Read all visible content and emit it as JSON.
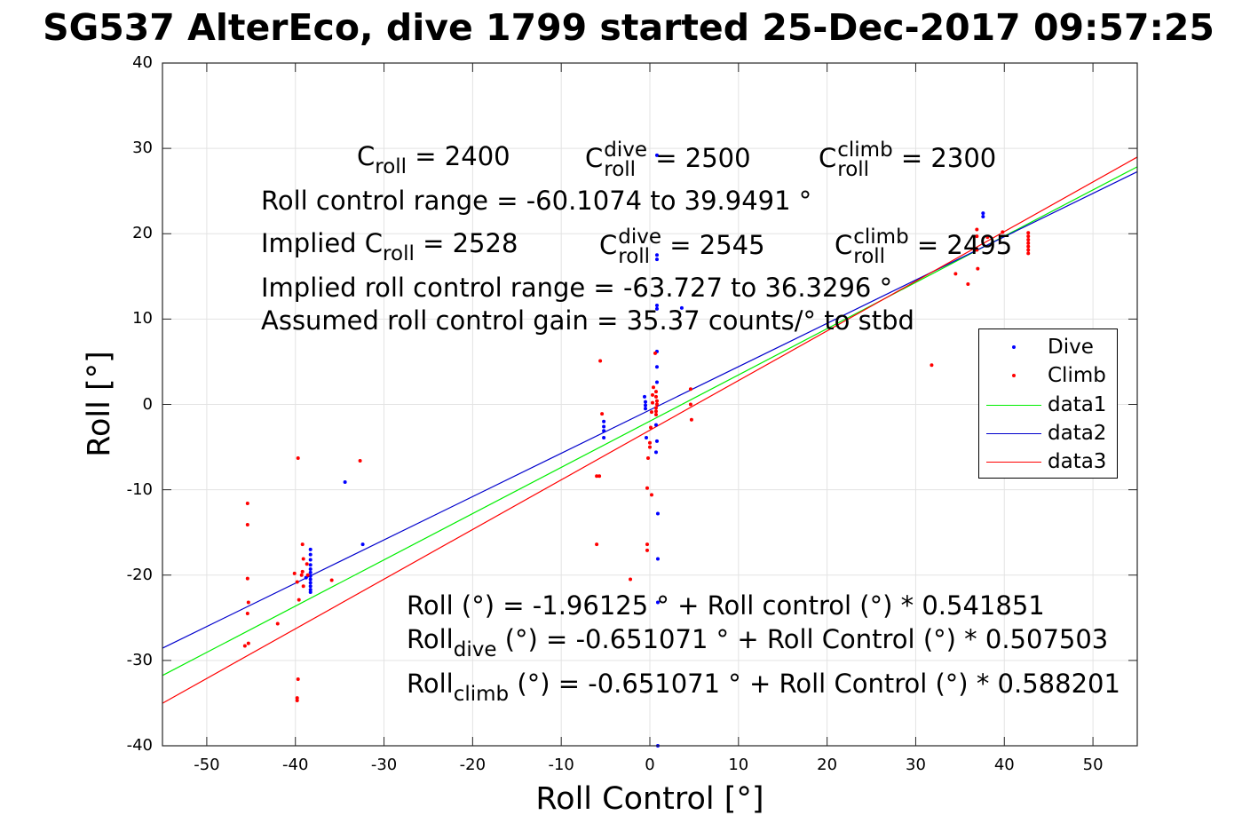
{
  "title": "SG537 AlterEco, dive 1799 started 25-Dec-2017 09:57:25",
  "annotations": {
    "c_roll": {
      "base": "C",
      "sub": "roll",
      "rest": " = 2400"
    },
    "c_roll_dive": {
      "base": "C",
      "sup": "dive",
      "sub": "roll",
      "rest": " = 2500"
    },
    "c_roll_climb": {
      "base": "C",
      "sup": "climb",
      "sub": "roll",
      "rest": " = 2300"
    },
    "roll_range": "Roll control range = -60.1074 to 39.9491 °",
    "implied_c_roll": {
      "prefix": "Implied C",
      "sub": "roll",
      "rest": " = 2528"
    },
    "implied_c_dive": {
      "base": "C",
      "sup": "dive",
      "sub": "roll",
      "rest": " = 2545"
    },
    "implied_c_climb": {
      "base": "C",
      "sup": "climb",
      "sub": "roll",
      "rest": " = 2495"
    },
    "implied_range": "Implied roll control range = -63.727 to 36.3296 °",
    "gain": "Assumed roll control gain = 35.37 counts/° to stbd",
    "fit_all": "Roll (°) = -1.96125 ° + Roll control (°) * 0.541851",
    "fit_dive": {
      "base": "Roll",
      "sub": "dive",
      "rest": " (°) = -0.651071 ° + Roll Control (°) * 0.507503"
    },
    "fit_climb": {
      "base": "Roll",
      "sub": "climb",
      "rest": " (°) = -0.651071 ° + Roll Control (°) * 0.588201"
    }
  },
  "chart_data": {
    "type": "scatter",
    "title": "SG537 AlterEco, dive 1799 started 25-Dec-2017 09:57:25",
    "xlabel": "Roll Control [°]",
    "ylabel": "Roll [°]",
    "xlim": [
      -55,
      55
    ],
    "ylim": [
      -40,
      40
    ],
    "xticks": [
      -50,
      -40,
      -30,
      -20,
      -10,
      0,
      10,
      20,
      30,
      40,
      50
    ],
    "yticks": [
      -40,
      -30,
      -20,
      -10,
      0,
      10,
      20,
      30,
      40
    ],
    "grid": true,
    "legend_position": "right",
    "series": [
      {
        "name": "Dive",
        "kind": "points",
        "color": "#0000ff",
        "points": [
          [
            -38.3,
            -17.0
          ],
          [
            -38.3,
            -17.6
          ],
          [
            -38.3,
            -18.2
          ],
          [
            -38.3,
            -18.8
          ],
          [
            -38.3,
            -19.3
          ],
          [
            -38.3,
            -19.7
          ],
          [
            -38.3,
            -20.1
          ],
          [
            -38.3,
            -20.5
          ],
          [
            -38.3,
            -20.9
          ],
          [
            -38.3,
            -21.3
          ],
          [
            -38.3,
            -21.7
          ],
          [
            -38.3,
            -22.0
          ],
          [
            -38.8,
            -20.3
          ],
          [
            -34.4,
            -9.1
          ],
          [
            -32.4,
            -16.4
          ],
          [
            -5.2,
            -2.0
          ],
          [
            -5.2,
            -2.6
          ],
          [
            -5.2,
            -3.1
          ],
          [
            -5.2,
            -3.9
          ],
          [
            -0.5,
            -0.1
          ],
          [
            -0.5,
            -0.5
          ],
          [
            -0.5,
            0.3
          ],
          [
            -0.6,
            0.9
          ],
          [
            -0.4,
            -3.9
          ],
          [
            0.8,
            29.2
          ],
          [
            0.8,
            17.5
          ],
          [
            0.8,
            17.0
          ],
          [
            0.8,
            11.6
          ],
          [
            0.8,
            11.2
          ],
          [
            0.8,
            6.2
          ],
          [
            0.8,
            4.4
          ],
          [
            0.8,
            2.6
          ],
          [
            0.7,
            -2.4
          ],
          [
            0.8,
            -4.3
          ],
          [
            0.7,
            -5.6
          ],
          [
            0.9,
            -12.8
          ],
          [
            0.9,
            -18.1
          ],
          [
            0.9,
            -23.2
          ],
          [
            0.9,
            -40.0
          ],
          [
            3.6,
            11.3
          ],
          [
            37.6,
            22.4
          ],
          [
            37.6,
            22.0
          ]
        ]
      },
      {
        "name": "Climb",
        "kind": "points",
        "color": "#ff0000",
        "points": [
          [
            -45.4,
            -11.6
          ],
          [
            -45.4,
            -14.1
          ],
          [
            -45.4,
            -20.4
          ],
          [
            -45.3,
            -23.2
          ],
          [
            -45.4,
            -24.5
          ],
          [
            -45.3,
            -28.0
          ],
          [
            -45.7,
            -28.3
          ],
          [
            -42.0,
            -25.7
          ],
          [
            -40.1,
            -19.8
          ],
          [
            -39.8,
            -20.8
          ],
          [
            -39.6,
            -22.9
          ],
          [
            -39.7,
            -32.2
          ],
          [
            -39.8,
            -34.4
          ],
          [
            -39.8,
            -34.7
          ],
          [
            -39.7,
            -6.3
          ],
          [
            -39.2,
            -16.4
          ],
          [
            -39.1,
            -18.1
          ],
          [
            -39.2,
            -19.6
          ],
          [
            -39.3,
            -20.0
          ],
          [
            -39.1,
            -21.3
          ],
          [
            -38.7,
            -18.7
          ],
          [
            -38.6,
            -20.0
          ],
          [
            -35.9,
            -20.6
          ],
          [
            -32.7,
            -6.6
          ],
          [
            -5.6,
            5.1
          ],
          [
            -5.4,
            -1.1
          ],
          [
            -5.7,
            -8.4
          ],
          [
            -6.0,
            -8.4
          ],
          [
            -6.0,
            -16.4
          ],
          [
            -2.2,
            -20.5
          ],
          [
            0.6,
            6.0
          ],
          [
            0.7,
            1.5
          ],
          [
            0.7,
            0.9
          ],
          [
            0.8,
            0.4
          ],
          [
            0.8,
            0.0
          ],
          [
            0.7,
            -0.4
          ],
          [
            0.7,
            -0.8
          ],
          [
            0.7,
            -1.2
          ],
          [
            0.4,
            2.0
          ],
          [
            0.3,
            1.1
          ],
          [
            0.3,
            0.2
          ],
          [
            0.2,
            -0.9
          ],
          [
            0.1,
            -2.7
          ],
          [
            0.0,
            -4.5
          ],
          [
            0.0,
            -5.0
          ],
          [
            -0.2,
            -6.3
          ],
          [
            -0.3,
            -9.8
          ],
          [
            0.2,
            -10.6
          ],
          [
            -0.3,
            -16.4
          ],
          [
            -0.3,
            -17.1
          ],
          [
            4.6,
            1.8
          ],
          [
            4.6,
            0.0
          ],
          [
            4.7,
            -1.8
          ],
          [
            31.8,
            4.6
          ],
          [
            34.5,
            15.3
          ],
          [
            35.9,
            14.1
          ],
          [
            37.0,
            15.9
          ],
          [
            36.9,
            18.1
          ],
          [
            36.9,
            19.7
          ],
          [
            36.9,
            20.5
          ],
          [
            38.1,
            19.6
          ],
          [
            39.8,
            20.2
          ],
          [
            42.7,
            20.1
          ],
          [
            42.7,
            19.7
          ],
          [
            42.7,
            19.3
          ],
          [
            42.7,
            18.9
          ],
          [
            42.7,
            18.5
          ],
          [
            42.7,
            18.1
          ],
          [
            42.7,
            17.7
          ]
        ]
      },
      {
        "name": "data1",
        "kind": "line",
        "color": "#00ee00",
        "x": [
          -55,
          55
        ],
        "y": [
          -31.7624,
          27.8412
        ]
      },
      {
        "name": "data2",
        "kind": "line",
        "color": "#0000cc",
        "x": [
          -55,
          55
        ],
        "y": [
          -28.5638,
          27.2615
        ]
      },
      {
        "name": "data3",
        "kind": "line",
        "color": "#ff0000",
        "x": [
          -55,
          55
        ],
        "y": [
          -35.0225,
          28.9799
        ]
      }
    ]
  }
}
